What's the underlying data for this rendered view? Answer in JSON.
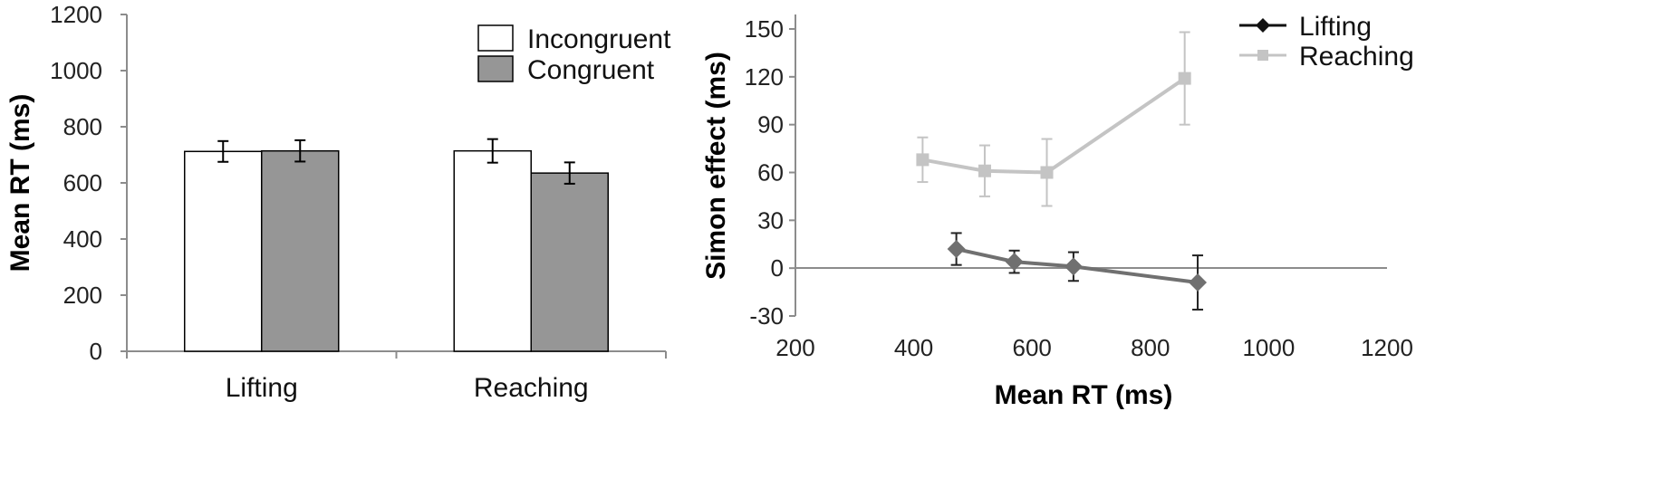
{
  "chart_data": [
    {
      "type": "bar",
      "ylabel": "Mean RT (ms)",
      "xlabel": "",
      "ylim": [
        0,
        1200
      ],
      "yticks": [
        0,
        200,
        400,
        600,
        800,
        1000,
        1200
      ],
      "categories": [
        "Lifting",
        "Reaching"
      ],
      "legend": "top-right",
      "grid": false,
      "series": [
        {
          "name": "Incongruent",
          "color": "#ffffff",
          "values": [
            712,
            714
          ],
          "errors": [
            37,
            42
          ]
        },
        {
          "name": "Congruent",
          "color": "#969696",
          "values": [
            714,
            635
          ],
          "errors": [
            38,
            38
          ]
        }
      ]
    },
    {
      "type": "line",
      "xlabel": "Mean RT (ms)",
      "ylabel": "Simon effect (ms)",
      "xlim": [
        200,
        1200
      ],
      "ylim": [
        -30,
        150
      ],
      "xticks": [
        200,
        400,
        600,
        800,
        1000,
        1200
      ],
      "yticks": [
        -30,
        0,
        30,
        60,
        90,
        120,
        150
      ],
      "legend": "top-right",
      "grid": false,
      "series": [
        {
          "name": "Lifting",
          "color": "#707070",
          "legend_color": "#111111",
          "marker": "diamond",
          "x": [
            472,
            570,
            670,
            880
          ],
          "y": [
            12,
            4,
            1,
            -9
          ],
          "errors": [
            10,
            7,
            9,
            17
          ]
        },
        {
          "name": "Reaching",
          "color": "#c4c4c4",
          "marker": "square",
          "x": [
            415,
            520,
            625,
            858
          ],
          "y": [
            68,
            61,
            60,
            119
          ],
          "errors": [
            14,
            16,
            21,
            29
          ]
        }
      ]
    }
  ]
}
